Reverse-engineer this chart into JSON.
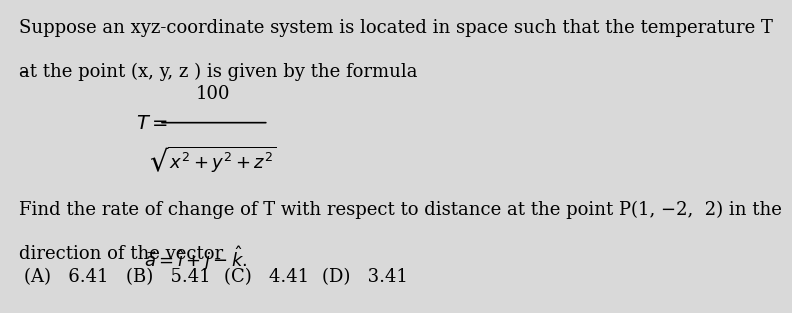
{
  "background_color": "#d9d9d9",
  "text_color": "#000000",
  "line1": "Suppose an xyz-coordinate system is located in space such that the temperature T",
  "line2": "at the point (x, y, z ) is given by the formula",
  "formula_numerator": "100",
  "question_line1": "Find the rate of change of T with respect to distance at the point P(1, −2,  2) in the",
  "question_line2": "direction of the vector",
  "answer_A": "(A)   6.41",
  "answer_B": "(B)   5.41",
  "answer_C": "(C)   4.41",
  "answer_D": "(D)   3.41",
  "font_size_main": 13,
  "font_size_formula": 13,
  "font_size_answers": 13
}
